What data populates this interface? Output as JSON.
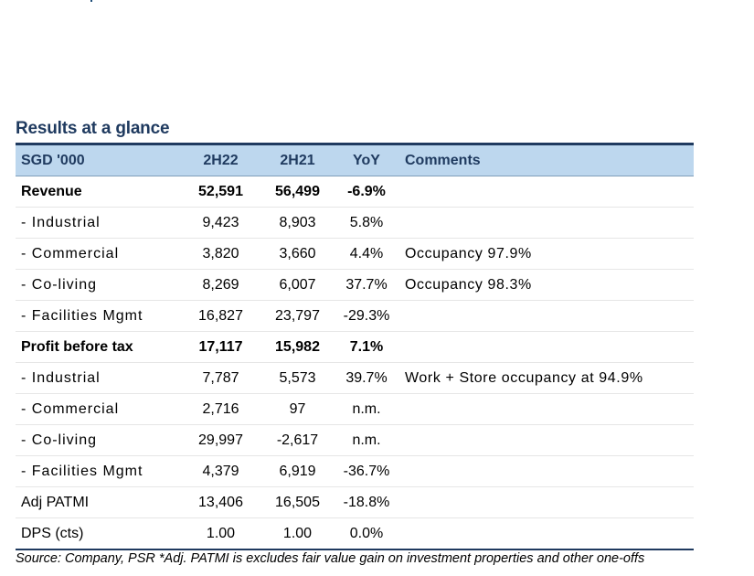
{
  "title": "Results at a glance",
  "header": {
    "label": "SGD '000",
    "col1": "2H22",
    "col2": "2H21",
    "col3": "YoY",
    "col4": "Comments"
  },
  "rows": [
    {
      "label": "Revenue",
      "v1": "52,591",
      "v2": "56,499",
      "yoy": "-6.9%",
      "comment": ""
    },
    {
      "label": "- Industrial",
      "v1": "9,423",
      "v2": "8,903",
      "yoy": "5.8%",
      "comment": ""
    },
    {
      "label": "- Commercial",
      "v1": "3,820",
      "v2": "3,660",
      "yoy": "4.4%",
      "comment": "Occupancy 97.9%"
    },
    {
      "label": "- Co-living",
      "v1": "8,269",
      "v2": "6,007",
      "yoy": "37.7%",
      "comment": "Occupancy 98.3%"
    },
    {
      "label": "- Facilities Mgmt",
      "v1": "16,827",
      "v2": "23,797",
      "yoy": "-29.3%",
      "comment": ""
    },
    {
      "label": "Profit before tax",
      "v1": "17,117",
      "v2": "15,982",
      "yoy": "7.1%",
      "comment": ""
    },
    {
      "label": "- Industrial",
      "v1": "7,787",
      "v2": "5,573",
      "yoy": "39.7%",
      "comment": "Work + Store occupancy at 94.9%"
    },
    {
      "label": "- Commercial",
      "v1": "2,716",
      "v2": "97",
      "yoy": "n.m.",
      "comment": ""
    },
    {
      "label": "- Co-living",
      "v1": "29,997",
      "v2": "-2,617",
      "yoy": "n.m.",
      "comment": ""
    },
    {
      "label": "- Facilities Mgmt",
      "v1": "4,379",
      "v2": "6,919",
      "yoy": "-36.7%",
      "comment": ""
    },
    {
      "label": "Adj PATMI",
      "v1": "13,406",
      "v2": "16,505",
      "yoy": "-18.8%",
      "comment": ""
    },
    {
      "label": "DPS (cts)",
      "v1": "1.00",
      "v2": "1.00",
      "yoy": "0.0%",
      "comment": ""
    }
  ],
  "footnote": "Source: Company, PSR *Adj. PATMI is excludes fair value gain on investment properties and other one-offs",
  "colors": {
    "title": "#1f3a5f",
    "header_bg": "#bdd7ee",
    "rule": "#1f3a5f"
  }
}
